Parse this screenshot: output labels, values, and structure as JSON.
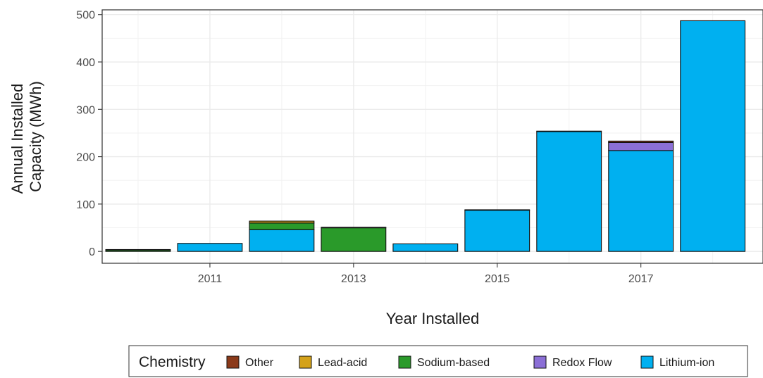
{
  "chart_data": {
    "type": "bar",
    "stacked": true,
    "title": "",
    "xlabel": "Year Installed",
    "ylabel_lines": [
      "Annual Installed",
      "Capacity (MWh)"
    ],
    "x_ticks": [
      "2011",
      "2013",
      "2015",
      "2017"
    ],
    "y_ticks": [
      "0",
      "100",
      "200",
      "300",
      "400",
      "500"
    ],
    "xlim": [
      2009.5,
      2018.7
    ],
    "ylim": [
      -25,
      510
    ],
    "grid": true,
    "legend": {
      "title": "Chemistry",
      "placement": "bottom"
    },
    "categories": [
      2010,
      2011,
      2012,
      2013,
      2014,
      2015,
      2016,
      2017,
      2018
    ],
    "series": [
      {
        "name": "Lithium-ion",
        "color": "#00b0f0",
        "values": [
          0,
          17,
          46,
          0,
          16,
          87,
          253,
          213,
          487
        ]
      },
      {
        "name": "Redox Flow",
        "color": "#8b6fd6",
        "values": [
          0,
          0,
          0,
          0,
          0,
          0,
          0,
          17,
          0
        ]
      },
      {
        "name": "Sodium-based",
        "color": "#2a9a2a",
        "values": [
          3,
          0,
          14,
          50,
          0,
          0,
          0,
          0,
          0
        ]
      },
      {
        "name": "Lead-acid",
        "color": "#d4a21a",
        "values": [
          0,
          0,
          4,
          0,
          0,
          0,
          0,
          0,
          0
        ]
      },
      {
        "name": "Other",
        "color": "#8b3a1a",
        "values": [
          1,
          0,
          0,
          1,
          0,
          1,
          1,
          3,
          0
        ]
      }
    ],
    "legend_order": [
      "Other",
      "Lead-acid",
      "Sodium-based",
      "Redox Flow",
      "Lithium-ion"
    ]
  }
}
